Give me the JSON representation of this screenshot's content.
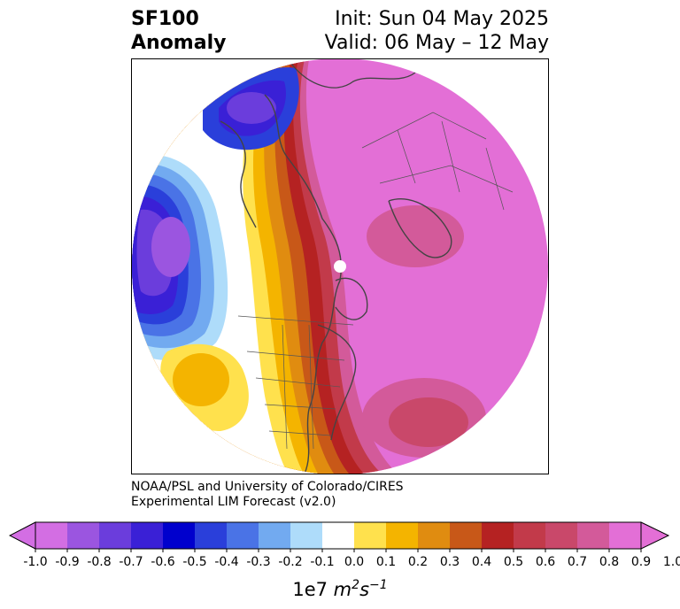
{
  "header": {
    "title_line1": "SF100",
    "title_line2": "Anomaly",
    "init": "Init: Sun 04 May 2025",
    "valid": "Valid: 06 May – 12 May"
  },
  "credit": {
    "line1": "NOAA/PSL and University of Colorado/CIRES",
    "line2": "Experimental LIM Forecast (v2.0)"
  },
  "colorbar": {
    "ticks": [
      "-1.0",
      "-0.9",
      "-0.8",
      "-0.7",
      "-0.6",
      "-0.5",
      "-0.4",
      "-0.3",
      "-0.2",
      "-0.1",
      "0.0",
      "0.1",
      "0.2",
      "0.3",
      "0.4",
      "0.5",
      "0.6",
      "0.7",
      "0.8",
      "0.9",
      "1.0"
    ],
    "colors": [
      "#d36ee3",
      "#9b55e0",
      "#6b3ddc",
      "#3a20d6",
      "#0000cd",
      "#2a3fda",
      "#4a73e6",
      "#72aaf0",
      "#aedcfa",
      "#ffffff",
      "#ffe14d",
      "#f4b400",
      "#e08c10",
      "#c85818",
      "#b52222",
      "#c23a4a",
      "#c9486a",
      "#d35a9a",
      "#e36fd6"
    ],
    "extend_low_color": "#d36ee3",
    "extend_high_color": "#e36fd6",
    "label_prefix": "1e7 ",
    "label_unit": "m",
    "label_exp1": "2",
    "label_unit2": "s",
    "label_exp2": "−1"
  }
}
